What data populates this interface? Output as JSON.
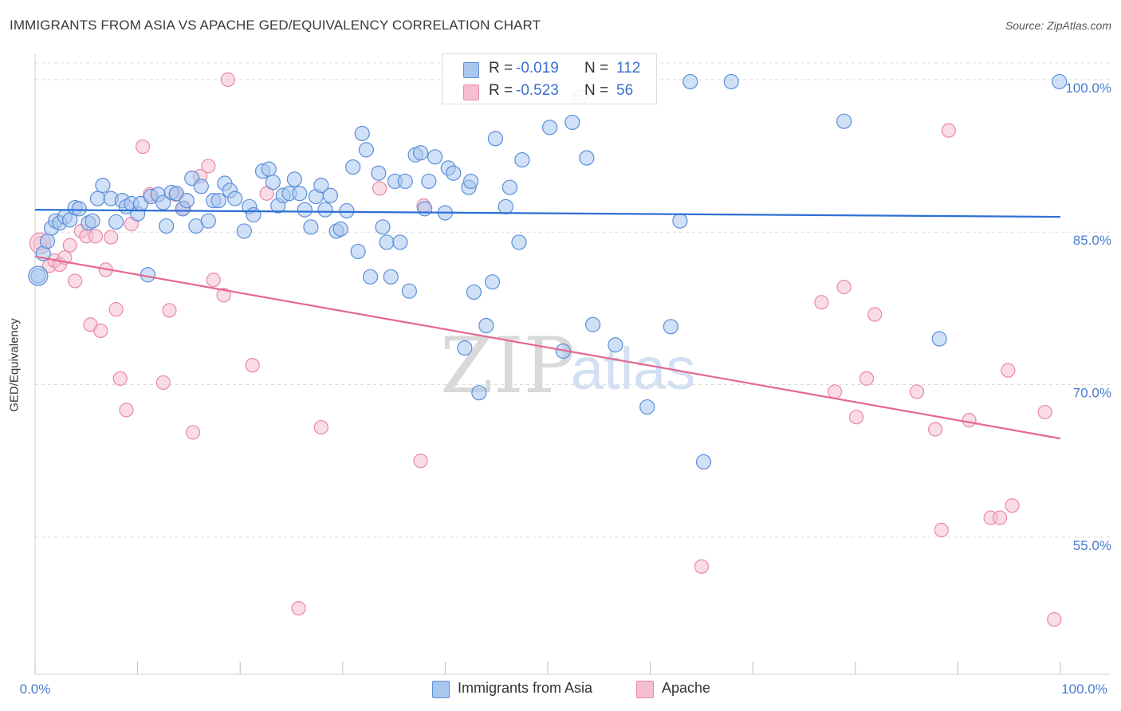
{
  "header": {
    "title": "IMMIGRANTS FROM ASIA VS APACHE GED/EQUIVALENCY CORRELATION CHART",
    "source": "Source: ZipAtlas.com"
  },
  "watermark": {
    "zip": "ZIP",
    "atlas": "atlas"
  },
  "legend": {
    "rows": [
      {
        "r_label": "R =",
        "r_value": "-0.019",
        "n_label": "N =",
        "n_value": "112"
      },
      {
        "r_label": "R =",
        "r_value": "-0.523",
        "n_label": "N =",
        "n_value": "56"
      }
    ]
  },
  "chart_data": {
    "type": "scatter",
    "title": "IMMIGRANTS FROM ASIA VS APACHE GED/EQUIVALENCY CORRELATION CHART",
    "xlabel": "",
    "ylabel": "GED/Equivalency",
    "xlim": [
      0,
      100
    ],
    "ylim": [
      41.5,
      102.5
    ],
    "x_tick_labels": [
      "0.0%",
      "100.0%"
    ],
    "y_ticks": [
      55,
      70,
      85,
      100
    ],
    "y_tick_labels": [
      "55.0%",
      "70.0%",
      "85.0%",
      "100.0%"
    ],
    "legend_position": "bottom-center",
    "colors": {
      "asia_fill": "#a9c6ef",
      "asia_stroke": "#5b8fd8",
      "asia_line": "#2d6fd4",
      "apache_fill": "#f6bfd0",
      "apache_stroke": "#e889a8",
      "apache_line": "#e4688f"
    },
    "series": [
      {
        "name": "Immigrants from Asia",
        "trend": {
          "x": [
            0,
            100
          ],
          "y": [
            87.2,
            86.5
          ]
        },
        "points": [
          [
            0.3,
            80.7
          ],
          [
            0.8,
            82.9
          ],
          [
            1.2,
            84.1
          ],
          [
            1.6,
            85.4
          ],
          [
            2.0,
            86.1
          ],
          [
            2.4,
            85.9
          ],
          [
            2.9,
            86.5
          ],
          [
            3.4,
            86.2
          ],
          [
            3.9,
            87.4
          ],
          [
            4.3,
            87.3
          ],
          [
            5.2,
            85.9
          ],
          [
            5.6,
            86.1
          ],
          [
            6.1,
            88.3
          ],
          [
            6.6,
            89.6
          ],
          [
            7.4,
            88.3
          ],
          [
            7.9,
            86.0
          ],
          [
            8.5,
            88.1
          ],
          [
            8.9,
            87.5
          ],
          [
            9.4,
            87.8
          ],
          [
            10.0,
            86.8
          ],
          [
            10.3,
            87.8
          ],
          [
            11.0,
            80.8
          ],
          [
            11.3,
            88.5
          ],
          [
            12.0,
            88.7
          ],
          [
            12.5,
            87.9
          ],
          [
            12.8,
            85.6
          ],
          [
            13.3,
            88.9
          ],
          [
            13.8,
            88.8
          ],
          [
            14.4,
            87.3
          ],
          [
            14.8,
            88.1
          ],
          [
            15.3,
            90.3
          ],
          [
            15.7,
            85.6
          ],
          [
            16.2,
            89.5
          ],
          [
            16.9,
            86.1
          ],
          [
            17.4,
            88.1
          ],
          [
            17.9,
            88.1
          ],
          [
            18.5,
            89.8
          ],
          [
            19.0,
            89.1
          ],
          [
            19.5,
            88.3
          ],
          [
            20.4,
            85.1
          ],
          [
            20.9,
            87.5
          ],
          [
            21.3,
            86.7
          ],
          [
            22.2,
            91.0
          ],
          [
            22.8,
            91.2
          ],
          [
            23.2,
            89.9
          ],
          [
            23.7,
            87.6
          ],
          [
            24.2,
            88.6
          ],
          [
            24.8,
            88.8
          ],
          [
            25.3,
            90.2
          ],
          [
            25.8,
            88.8
          ],
          [
            26.3,
            87.2
          ],
          [
            26.9,
            85.5
          ],
          [
            27.4,
            88.5
          ],
          [
            27.9,
            89.6
          ],
          [
            28.3,
            87.2
          ],
          [
            28.8,
            88.6
          ],
          [
            29.4,
            85.1
          ],
          [
            29.8,
            85.3
          ],
          [
            30.4,
            87.1
          ],
          [
            31.0,
            91.4
          ],
          [
            31.5,
            83.1
          ],
          [
            31.9,
            94.7
          ],
          [
            32.3,
            93.1
          ],
          [
            32.7,
            80.6
          ],
          [
            33.5,
            90.8
          ],
          [
            33.9,
            85.5
          ],
          [
            34.3,
            84.0
          ],
          [
            34.7,
            80.6
          ],
          [
            35.1,
            90.0
          ],
          [
            35.6,
            84.0
          ],
          [
            36.1,
            90.0
          ],
          [
            36.5,
            79.2
          ],
          [
            37.1,
            92.6
          ],
          [
            37.6,
            92.8
          ],
          [
            38.0,
            87.3
          ],
          [
            38.4,
            90.0
          ],
          [
            39.0,
            92.4
          ],
          [
            40.0,
            86.9
          ],
          [
            40.3,
            91.3
          ],
          [
            40.8,
            90.8
          ],
          [
            41.9,
            73.6
          ],
          [
            42.3,
            89.4
          ],
          [
            42.5,
            90.0
          ],
          [
            42.8,
            79.1
          ],
          [
            43.3,
            69.2
          ],
          [
            44.0,
            75.8
          ],
          [
            44.6,
            80.1
          ],
          [
            44.9,
            94.2
          ],
          [
            45.9,
            87.5
          ],
          [
            46.3,
            89.4
          ],
          [
            47.2,
            84.0
          ],
          [
            47.5,
            92.1
          ],
          [
            50.2,
            95.3
          ],
          [
            51.5,
            73.3
          ],
          [
            52.4,
            95.8
          ],
          [
            53.2,
            98.3
          ],
          [
            53.8,
            92.3
          ],
          [
            54.4,
            75.9
          ],
          [
            56.6,
            73.9
          ],
          [
            59.7,
            67.8
          ],
          [
            62.0,
            75.7
          ],
          [
            62.9,
            86.1
          ],
          [
            63.9,
            99.8
          ],
          [
            65.2,
            62.4
          ],
          [
            67.9,
            99.8
          ],
          [
            78.9,
            95.9
          ],
          [
            88.2,
            74.5
          ],
          [
            99.9,
            99.8
          ]
        ]
      },
      {
        "name": "Apache",
        "trend": {
          "x": [
            0,
            100
          ],
          "y": [
            82.6,
            64.7
          ]
        },
        "points": [
          [
            0.5,
            83.9
          ],
          [
            1.4,
            81.7
          ],
          [
            1.9,
            82.2
          ],
          [
            2.4,
            81.8
          ],
          [
            2.9,
            82.5
          ],
          [
            3.4,
            83.7
          ],
          [
            3.9,
            80.2
          ],
          [
            4.5,
            85.1
          ],
          [
            5.0,
            84.6
          ],
          [
            5.4,
            75.9
          ],
          [
            5.9,
            84.6
          ],
          [
            6.4,
            75.3
          ],
          [
            6.9,
            81.3
          ],
          [
            7.4,
            84.5
          ],
          [
            7.9,
            77.4
          ],
          [
            8.3,
            70.6
          ],
          [
            8.9,
            67.5
          ],
          [
            9.4,
            85.8
          ],
          [
            10.5,
            93.4
          ],
          [
            11.2,
            88.7
          ],
          [
            12.5,
            70.2
          ],
          [
            13.1,
            77.3
          ],
          [
            13.7,
            88.7
          ],
          [
            14.5,
            87.4
          ],
          [
            15.4,
            65.3
          ],
          [
            16.1,
            90.5
          ],
          [
            16.9,
            91.5
          ],
          [
            17.4,
            80.3
          ],
          [
            18.4,
            78.8
          ],
          [
            18.8,
            100.0
          ],
          [
            21.2,
            71.9
          ],
          [
            22.6,
            88.8
          ],
          [
            25.7,
            48.0
          ],
          [
            27.9,
            65.8
          ],
          [
            33.6,
            89.3
          ],
          [
            37.6,
            62.5
          ],
          [
            37.9,
            87.6
          ],
          [
            65.0,
            52.1
          ],
          [
            76.7,
            78.1
          ],
          [
            78.0,
            69.3
          ],
          [
            78.9,
            79.6
          ],
          [
            80.1,
            66.8
          ],
          [
            81.1,
            70.6
          ],
          [
            81.9,
            76.9
          ],
          [
            86.0,
            69.3
          ],
          [
            87.8,
            65.6
          ],
          [
            88.4,
            55.7
          ],
          [
            89.1,
            95.0
          ],
          [
            91.1,
            66.5
          ],
          [
            93.2,
            56.9
          ],
          [
            94.1,
            56.9
          ],
          [
            94.9,
            71.4
          ],
          [
            95.3,
            58.1
          ],
          [
            98.5,
            67.3
          ],
          [
            99.4,
            46.9
          ]
        ]
      }
    ]
  },
  "bottom_legend": {
    "items": [
      {
        "label": "Immigrants from Asia"
      },
      {
        "label": "Apache"
      }
    ]
  }
}
